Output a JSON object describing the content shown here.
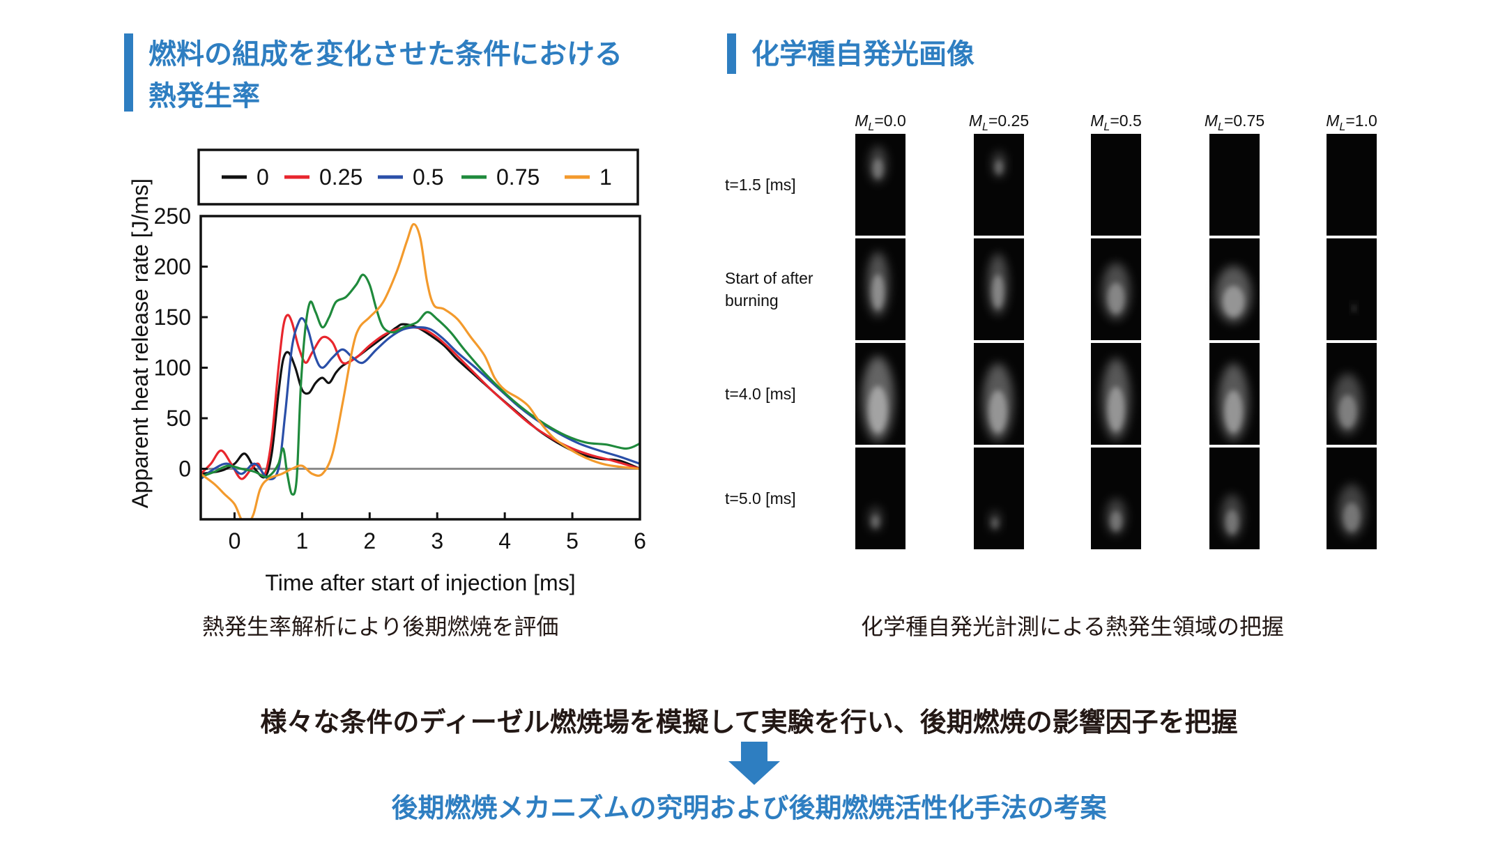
{
  "left_panel": {
    "title": "燃料の組成を変化させた条件における\n熱発生率",
    "caption": "熱発生率解析により後期燃焼を評価"
  },
  "right_panel": {
    "title": "化学種自発光画像",
    "caption": "化学種自発光計測による熱発生領域の把握",
    "column_prefix": "M",
    "column_subscript": "L",
    "columns": [
      "=0.0",
      "=0.25",
      "=0.5",
      "=0.75",
      "=1.0"
    ],
    "rows": [
      "t=1.5 [ms]",
      "Start of after\nburning",
      "t=4.0 [ms]",
      "t=5.0 [ms]"
    ]
  },
  "bottom": {
    "statement": "様々な条件のディーゼル燃焼場を模擬して実験を行い、後期燃焼の影響因子を把握",
    "conclusion": "後期燃焼メカニズムの究明および後期燃焼活性化手法の考案"
  },
  "colors": {
    "accent": "#2e7ec1",
    "text": "#231815",
    "series": [
      "#111111",
      "#e8262d",
      "#2a4fa8",
      "#1f8a3c",
      "#f39a2c"
    ]
  },
  "chart_data": {
    "type": "line",
    "xlabel": "Time after start of injection [ms]",
    "ylabel": "Apparent heat release rate [J/ms]",
    "xlim": [
      -0.5,
      6
    ],
    "ylim": [
      -50,
      250
    ],
    "xticks": [
      0,
      1,
      2,
      3,
      4,
      5,
      6
    ],
    "yticks": [
      0,
      50,
      100,
      150,
      200,
      250
    ],
    "zero_line": true,
    "legend": "top",
    "series": [
      {
        "name": "0",
        "points": [
          [
            -0.5,
            -5
          ],
          [
            -0.2,
            -2
          ],
          [
            0,
            5
          ],
          [
            0.15,
            15
          ],
          [
            0.3,
            0
          ],
          [
            0.45,
            -8
          ],
          [
            0.55,
            15
          ],
          [
            0.65,
            75
          ],
          [
            0.72,
            108
          ],
          [
            0.8,
            115
          ],
          [
            0.9,
            100
          ],
          [
            1.0,
            78
          ],
          [
            1.1,
            75
          ],
          [
            1.2,
            85
          ],
          [
            1.3,
            90
          ],
          [
            1.4,
            85
          ],
          [
            1.5,
            95
          ],
          [
            1.6,
            102
          ],
          [
            1.8,
            110
          ],
          [
            2.0,
            120
          ],
          [
            2.2,
            130
          ],
          [
            2.4,
            140
          ],
          [
            2.5,
            143
          ],
          [
            2.7,
            140
          ],
          [
            2.9,
            132
          ],
          [
            3.1,
            122
          ],
          [
            3.3,
            108
          ],
          [
            3.6,
            90
          ],
          [
            3.9,
            72
          ],
          [
            4.2,
            55
          ],
          [
            4.5,
            38
          ],
          [
            4.8,
            25
          ],
          [
            5.1,
            15
          ],
          [
            5.4,
            10
          ],
          [
            5.7,
            8
          ],
          [
            6,
            0
          ]
        ]
      },
      {
        "name": "0.25",
        "points": [
          [
            -0.5,
            -5
          ],
          [
            -0.35,
            5
          ],
          [
            -0.2,
            18
          ],
          [
            -0.05,
            5
          ],
          [
            0.1,
            -10
          ],
          [
            0.25,
            0
          ],
          [
            0.35,
            5
          ],
          [
            0.45,
            -5
          ],
          [
            0.55,
            30
          ],
          [
            0.65,
            100
          ],
          [
            0.72,
            140
          ],
          [
            0.78,
            152
          ],
          [
            0.85,
            145
          ],
          [
            0.95,
            120
          ],
          [
            1.05,
            105
          ],
          [
            1.15,
            115
          ],
          [
            1.3,
            130
          ],
          [
            1.45,
            125
          ],
          [
            1.6,
            105
          ],
          [
            1.8,
            110
          ],
          [
            2.0,
            122
          ],
          [
            2.2,
            132
          ],
          [
            2.4,
            138
          ],
          [
            2.6,
            140
          ],
          [
            2.8,
            138
          ],
          [
            3.0,
            130
          ],
          [
            3.2,
            118
          ],
          [
            3.5,
            98
          ],
          [
            3.8,
            78
          ],
          [
            4.1,
            60
          ],
          [
            4.4,
            43
          ],
          [
            4.7,
            30
          ],
          [
            5.0,
            20
          ],
          [
            5.3,
            13
          ],
          [
            5.6,
            8
          ],
          [
            6,
            0
          ]
        ]
      },
      {
        "name": "0.5",
        "points": [
          [
            -0.5,
            -10
          ],
          [
            -0.3,
            0
          ],
          [
            -0.1,
            5
          ],
          [
            0.1,
            -5
          ],
          [
            0.3,
            5
          ],
          [
            0.5,
            -10
          ],
          [
            0.65,
            0
          ],
          [
            0.75,
            55
          ],
          [
            0.85,
            120
          ],
          [
            0.95,
            145
          ],
          [
            1.02,
            148
          ],
          [
            1.1,
            135
          ],
          [
            1.2,
            110
          ],
          [
            1.3,
            100
          ],
          [
            1.45,
            110
          ],
          [
            1.6,
            118
          ],
          [
            1.75,
            110
          ],
          [
            1.9,
            105
          ],
          [
            2.1,
            118
          ],
          [
            2.3,
            130
          ],
          [
            2.5,
            138
          ],
          [
            2.7,
            140
          ],
          [
            2.9,
            138
          ],
          [
            3.1,
            128
          ],
          [
            3.3,
            115
          ],
          [
            3.6,
            98
          ],
          [
            3.9,
            80
          ],
          [
            4.2,
            62
          ],
          [
            4.5,
            47
          ],
          [
            4.8,
            35
          ],
          [
            5.1,
            25
          ],
          [
            5.4,
            18
          ],
          [
            5.7,
            12
          ],
          [
            6,
            5
          ]
        ]
      },
      {
        "name": "0.75",
        "points": [
          [
            -0.5,
            -8
          ],
          [
            -0.3,
            -3
          ],
          [
            -0.1,
            3
          ],
          [
            0.1,
            0
          ],
          [
            0.3,
            -3
          ],
          [
            0.45,
            -8
          ],
          [
            0.55,
            -5
          ],
          [
            0.65,
            5
          ],
          [
            0.72,
            20
          ],
          [
            0.78,
            -5
          ],
          [
            0.85,
            -25
          ],
          [
            0.92,
            -10
          ],
          [
            0.98,
            80
          ],
          [
            1.05,
            140
          ],
          [
            1.12,
            165
          ],
          [
            1.2,
            155
          ],
          [
            1.3,
            140
          ],
          [
            1.4,
            150
          ],
          [
            1.5,
            165
          ],
          [
            1.65,
            170
          ],
          [
            1.8,
            182
          ],
          [
            1.9,
            192
          ],
          [
            2.0,
            182
          ],
          [
            2.1,
            158
          ],
          [
            2.2,
            140
          ],
          [
            2.35,
            135
          ],
          [
            2.5,
            140
          ],
          [
            2.7,
            145
          ],
          [
            2.85,
            155
          ],
          [
            3.0,
            148
          ],
          [
            3.2,
            135
          ],
          [
            3.4,
            118
          ],
          [
            3.7,
            95
          ],
          [
            4.0,
            75
          ],
          [
            4.3,
            58
          ],
          [
            4.6,
            44
          ],
          [
            4.9,
            33
          ],
          [
            5.2,
            26
          ],
          [
            5.5,
            24
          ],
          [
            5.8,
            20
          ],
          [
            6,
            25
          ]
        ]
      },
      {
        "name": "1",
        "points": [
          [
            -0.5,
            -5
          ],
          [
            -0.3,
            -15
          ],
          [
            -0.15,
            -25
          ],
          [
            0,
            -35
          ],
          [
            0.1,
            -50
          ],
          [
            0.18,
            -55
          ],
          [
            0.28,
            -45
          ],
          [
            0.38,
            -20
          ],
          [
            0.5,
            -10
          ],
          [
            0.7,
            -5
          ],
          [
            0.85,
            0
          ],
          [
            1.0,
            3
          ],
          [
            1.15,
            -5
          ],
          [
            1.3,
            -5
          ],
          [
            1.45,
            15
          ],
          [
            1.6,
            65
          ],
          [
            1.75,
            120
          ],
          [
            1.85,
            140
          ],
          [
            2.0,
            150
          ],
          [
            2.2,
            165
          ],
          [
            2.4,
            195
          ],
          [
            2.55,
            225
          ],
          [
            2.65,
            242
          ],
          [
            2.75,
            228
          ],
          [
            2.85,
            185
          ],
          [
            2.95,
            162
          ],
          [
            3.1,
            158
          ],
          [
            3.3,
            148
          ],
          [
            3.5,
            130
          ],
          [
            3.7,
            112
          ],
          [
            3.85,
            90
          ],
          [
            4.0,
            78
          ],
          [
            4.2,
            70
          ],
          [
            4.35,
            62
          ],
          [
            4.5,
            48
          ],
          [
            4.7,
            32
          ],
          [
            4.9,
            22
          ],
          [
            5.1,
            14
          ],
          [
            5.3,
            8
          ],
          [
            5.5,
            4
          ],
          [
            5.7,
            2
          ],
          [
            6,
            0
          ]
        ]
      }
    ]
  }
}
